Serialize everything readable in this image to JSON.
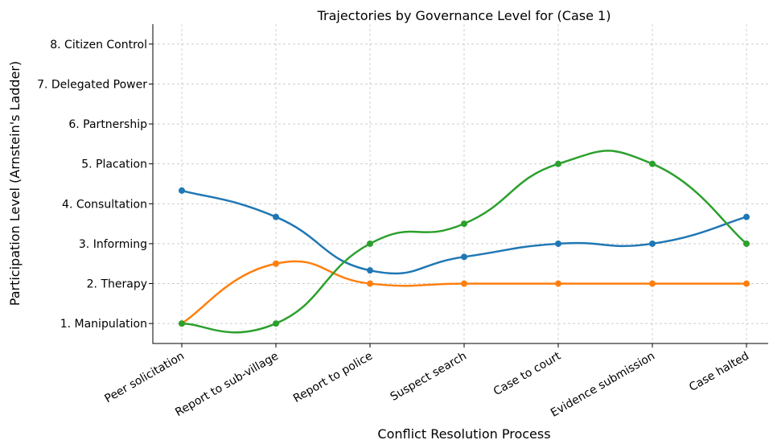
{
  "chart_data": {
    "type": "line",
    "title": "Trajectories by Governance Level for (Case 1)",
    "x_label": "Conflict Resolution Process",
    "y_label": "Participation Level (Arnstein's Ladder)",
    "categories": [
      "Peer solicitation",
      "Report to sub-village",
      "Report to police",
      "Suspect search",
      "Case to court",
      "Evidence submission",
      "Case halted"
    ],
    "series": [
      {
        "color": "#1f77b4",
        "values": [
          4.33,
          3.67,
          2.33,
          2.67,
          3,
          3,
          3.67
        ]
      },
      {
        "color": "#ff7f0e",
        "values": [
          1,
          2.5,
          2,
          2,
          2,
          2,
          2
        ]
      },
      {
        "color": "#2ca02c",
        "values": [
          1,
          1,
          3,
          3.5,
          5,
          5,
          3
        ]
      }
    ],
    "ylim": [
      0.5,
      8.5
    ],
    "yticks": [
      {
        "value": 1,
        "label": "1. Manipulation"
      },
      {
        "value": 2,
        "label": "2. Therapy"
      },
      {
        "value": 3,
        "label": "3. Informing"
      },
      {
        "value": 4,
        "label": "4. Consultation"
      },
      {
        "value": 5,
        "label": "5. Placation"
      },
      {
        "value": 6,
        "label": "6. Partnership"
      },
      {
        "value": 7,
        "label": "7. Delegated Power"
      },
      {
        "value": 8,
        "label": "8. Citizen Control"
      }
    ],
    "grid": true
  }
}
